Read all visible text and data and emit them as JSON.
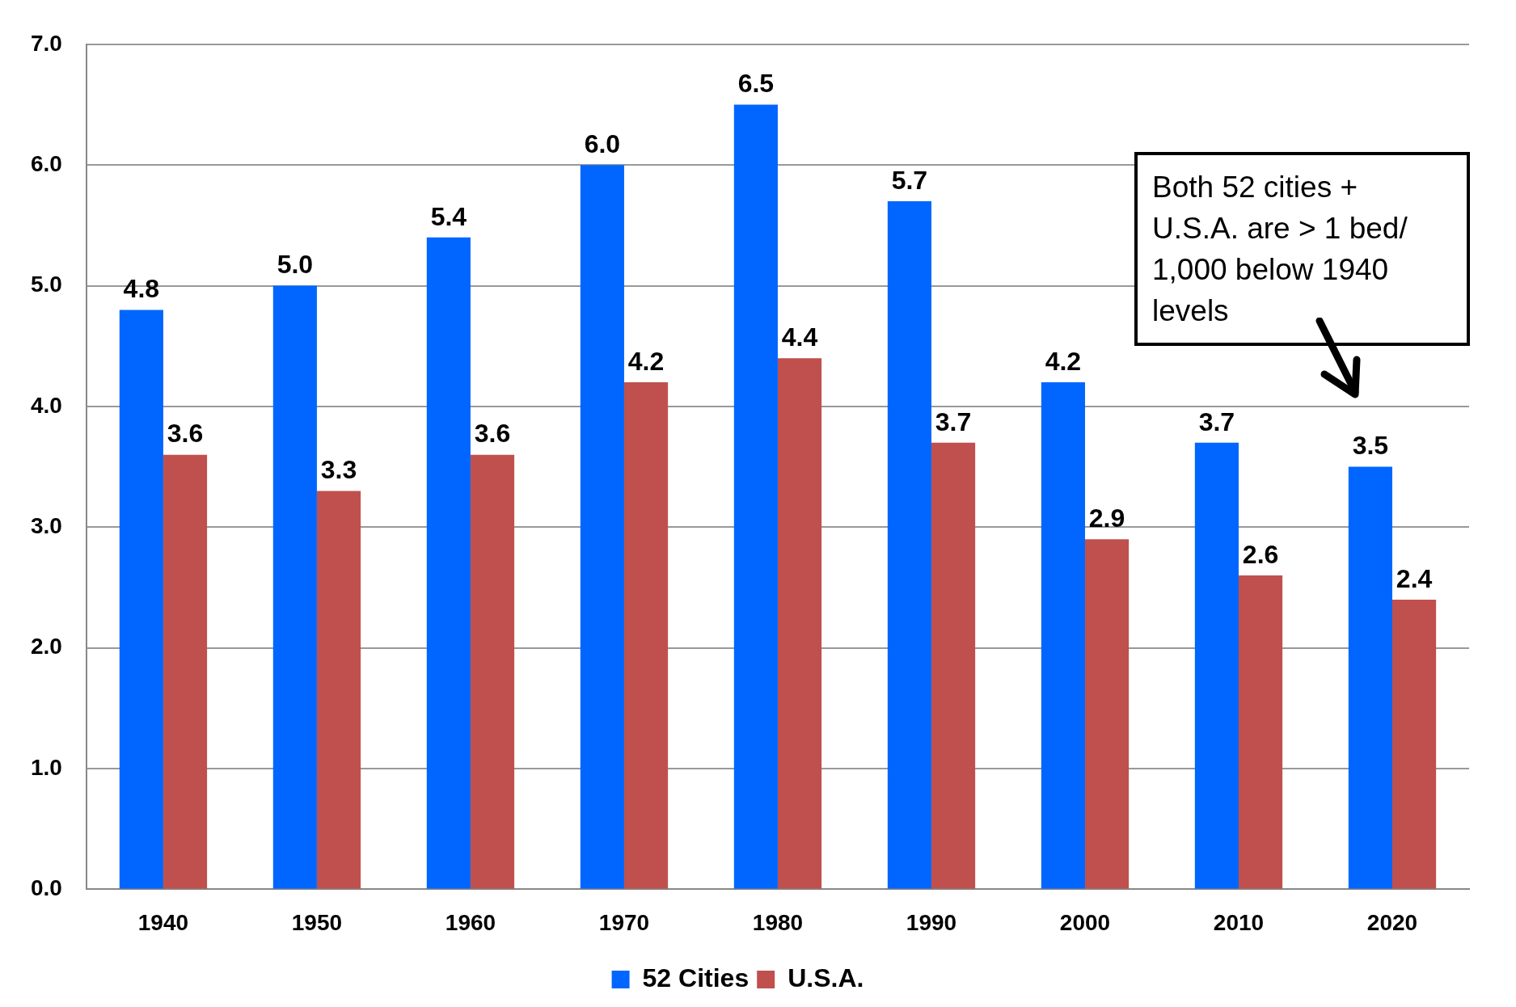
{
  "chart_data": {
    "type": "bar",
    "categories": [
      "1940",
      "1950",
      "1960",
      "1970",
      "1980",
      "1990",
      "2000",
      "2010",
      "2020"
    ],
    "series": [
      {
        "name": "52 Cities",
        "color": "#0066ff",
        "values": [
          4.8,
          5.0,
          5.4,
          6.0,
          6.5,
          5.7,
          4.2,
          3.7,
          3.5
        ],
        "value_labels": [
          "4.8",
          "5.0",
          "5.4",
          "6.0",
          "6.5",
          "5.7",
          "4.2",
          "3.7",
          "3.5"
        ]
      },
      {
        "name": "U.S.A.",
        "color": "#c0504d",
        "values": [
          3.6,
          3.3,
          3.6,
          4.2,
          4.4,
          3.7,
          2.9,
          2.6,
          2.4
        ],
        "value_labels": [
          "3.6",
          "3.3",
          "3.6",
          "4.2",
          "4.4",
          "3.7",
          "2.9",
          "2.6",
          "2.4"
        ]
      }
    ],
    "ylim": [
      0,
      7
    ],
    "yticks": [
      {
        "value": 0,
        "label": "0.0"
      },
      {
        "value": 1,
        "label": "1.0"
      },
      {
        "value": 2,
        "label": "2.0"
      },
      {
        "value": 3,
        "label": "3.0"
      },
      {
        "value": 4,
        "label": "4.0"
      },
      {
        "value": 5,
        "label": "5.0"
      },
      {
        "value": 6,
        "label": "6.0"
      },
      {
        "value": 7,
        "label": "7.0"
      }
    ],
    "grid": "y",
    "legend": "bottom",
    "annotations": [
      "Both 52 cities + U.S.A. are > 1 bed/ 1,000 below 1940 levels"
    ]
  }
}
